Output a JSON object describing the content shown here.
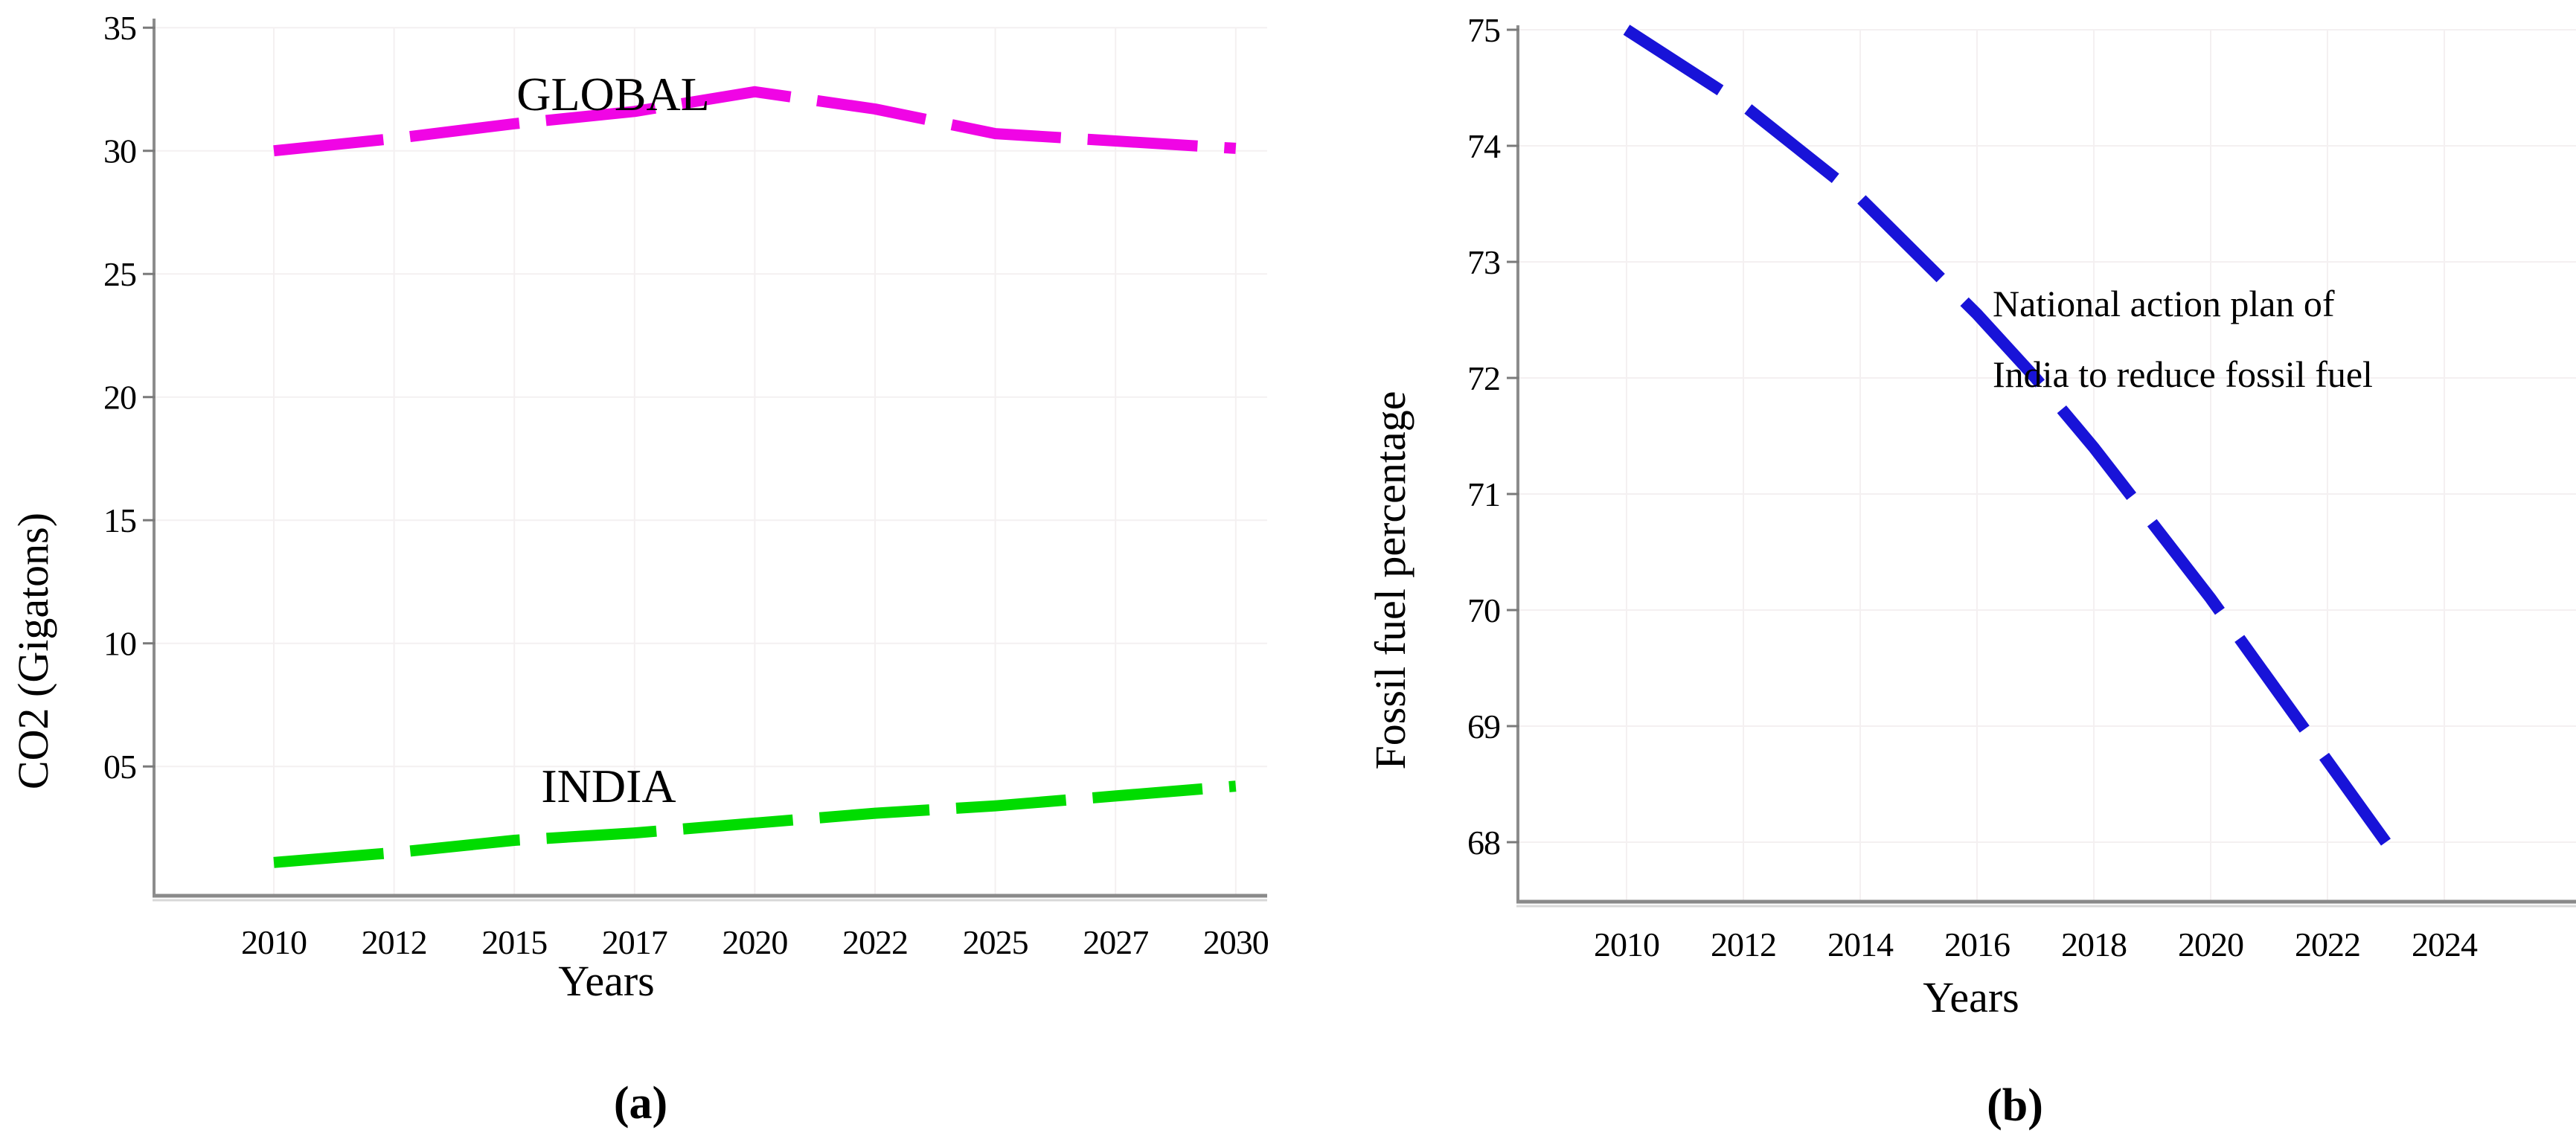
{
  "figure": {
    "background": "#ffffff"
  },
  "chart_data": [
    {
      "id": "a",
      "type": "line",
      "caption": "(a)",
      "xlabel": "Years",
      "ylabel": "CO2 (Gigatons)",
      "x_tick_labels": [
        "2010",
        "2012",
        "2015",
        "2017",
        "2020",
        "2022",
        "2025",
        "2027",
        "2030"
      ],
      "y_tick_labels": [
        "35",
        "30",
        "25",
        "20",
        "15",
        "10",
        "05"
      ],
      "y_tick_values": [
        35,
        30,
        25,
        20,
        15,
        10,
        5
      ],
      "ylim": [
        0,
        35
      ],
      "grid": true,
      "legend_position": "inline-labels",
      "series": [
        {
          "name": "GLOBAL",
          "color": "#f005e5",
          "line_style": "dashed",
          "x": [
            2010,
            2012,
            2015,
            2017,
            2020,
            2022,
            2025,
            2027,
            2030
          ],
          "values": [
            30.0,
            30.5,
            31.1,
            31.6,
            32.4,
            31.7,
            30.7,
            30.4,
            30.1
          ]
        },
        {
          "name": "INDIA",
          "color": "#00dc00",
          "line_style": "dashed",
          "x": [
            2010,
            2012,
            2015,
            2017,
            2020,
            2022,
            2025,
            2027,
            2030
          ],
          "values": [
            1.1,
            1.5,
            2.0,
            2.3,
            2.7,
            3.1,
            3.4,
            3.8,
            4.2
          ]
        }
      ]
    },
    {
      "id": "b",
      "type": "line",
      "caption": "(b)",
      "xlabel": "Years",
      "ylabel": "Fossil fuel percentage",
      "x_tick_labels": [
        "2010",
        "2012",
        "2014",
        "2016",
        "2018",
        "2020",
        "2022",
        "2024"
      ],
      "x_tick_values": [
        2010,
        2012,
        2014,
        2016,
        2018,
        2020,
        2022,
        2024
      ],
      "y_tick_labels": [
        "75",
        "74",
        "73",
        "72",
        "71",
        "70",
        "69",
        "68"
      ],
      "y_tick_values": [
        75,
        74,
        73,
        72,
        71,
        70,
        69,
        68
      ],
      "ylim": [
        67.5,
        75
      ],
      "grid": true,
      "annotation": {
        "lines": [
          "National action plan of",
          "India to reduce fossil fuel"
        ]
      },
      "series": [
        {
          "name": "Fossil fuel percentage",
          "color": "#1813d8",
          "line_style": "dashed",
          "points": [
            [
              2010,
              75.0
            ],
            [
              2012,
              74.35
            ],
            [
              2014,
              73.55
            ],
            [
              2015,
              73.05
            ],
            [
              2016,
              72.55
            ],
            [
              2017,
              72.0
            ],
            [
              2018,
              71.4
            ],
            [
              2019,
              70.75
            ],
            [
              2020,
              70.1
            ],
            [
              2021,
              69.4
            ],
            [
              2022,
              68.7
            ],
            [
              2023,
              68.0
            ]
          ]
        }
      ]
    }
  ]
}
